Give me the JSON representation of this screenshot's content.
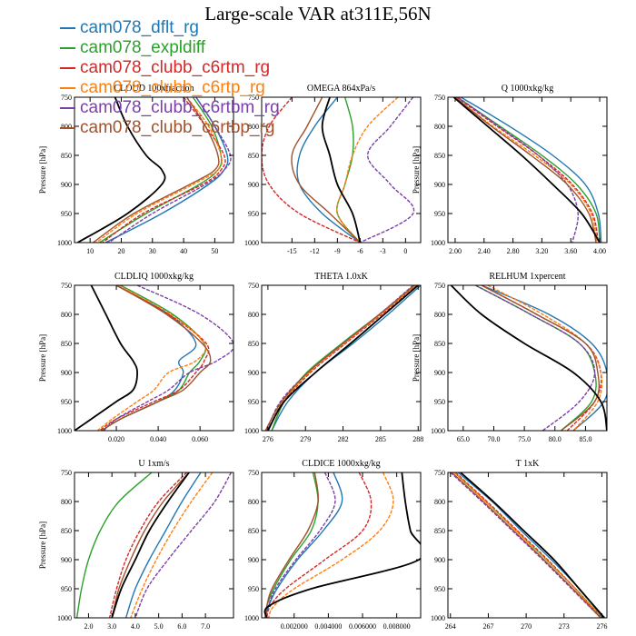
{
  "figure_title": "Large-scale VAR at311E,56N",
  "ylabel": "Pressure [hPa]",
  "colors": {
    "cam078_dflt_rg": "#1f77b4",
    "cam078_expldiff": "#2ca02c",
    "cam078_clubb_c6rtm_rg": "#d62728",
    "cam078_clubb_c6rtp_rg": "#ff7f0e",
    "cam078_clubb_c6rtbm_rg": "#7b3fa8",
    "cam078_clubb_c6rtbp_rg": "#a0522d",
    "reference": "#000000"
  },
  "legend": [
    {
      "label": "cam078_dflt_rg",
      "color": "#1f77b4"
    },
    {
      "label": "cam078_expldiff",
      "color": "#2ca02c"
    },
    {
      "label": "cam078_clubb_c6rtm_rg",
      "color": "#d62728"
    },
    {
      "label": "cam078_clubb_c6rtp_rg",
      "color": "#ff7f0e"
    },
    {
      "label": "cam078_clubb_c6rtbm_rg",
      "color": "#7b3fa8"
    },
    {
      "label": "cam078_clubb_c6rtbp_rg",
      "color": "#a0522d"
    }
  ],
  "chart_data": [
    {
      "type": "line",
      "title": "CLOUD 100xfraction",
      "ylabel": "Pressure [hPa]",
      "xlim": [
        5,
        56
      ],
      "ylim": [
        750,
        1000
      ],
      "xticks": [
        "10",
        "20",
        "30",
        "40",
        "50"
      ],
      "xtick_values": [
        10,
        20,
        30,
        40,
        50
      ],
      "yticks": [
        "750",
        "800",
        "850",
        "900",
        "950",
        "1000"
      ],
      "pressure": [
        750,
        800,
        850,
        875,
        900,
        950,
        1000
      ],
      "series": [
        {
          "color_key": "cam078_dflt_rg",
          "values": [
            44,
            50,
            54,
            53,
            48,
            33,
            15
          ]
        },
        {
          "color_key": "cam078_expldiff",
          "values": [
            43,
            49,
            52,
            51,
            45,
            28,
            13
          ]
        },
        {
          "color_key": "cam078_clubb_c6rtm_rg",
          "values": [
            40,
            47,
            53,
            52,
            46,
            27,
            14
          ]
        },
        {
          "color_key": "cam078_clubb_c6rtp_rg",
          "values": [
            41,
            48,
            52,
            51,
            43,
            25,
            12
          ]
        },
        {
          "color_key": "cam078_clubb_c6rtbm_rg",
          "values": [
            44,
            50,
            55,
            53,
            47,
            30,
            16
          ]
        },
        {
          "color_key": "cam078_clubb_c6rtbp_rg",
          "values": [
            41,
            47,
            51,
            50,
            42,
            24,
            11
          ]
        },
        {
          "color_key": "reference",
          "values": [
            18,
            22,
            28,
            33,
            33,
            22,
            6
          ]
        }
      ]
    },
    {
      "type": "line",
      "title": "OMEGA  864xPa/s",
      "ylabel": "",
      "xlim": [
        -19,
        2
      ],
      "ylim": [
        750,
        1000
      ],
      "xticks": [
        "-15",
        "-12",
        "-9",
        "-6",
        "-3",
        "0"
      ],
      "xtick_values": [
        -15,
        -12,
        -9,
        -6,
        -3,
        0
      ],
      "yticks": [],
      "pressure": [
        750,
        800,
        850,
        900,
        950,
        1000
      ],
      "series": [
        {
          "color_key": "cam078_dflt_rg",
          "values": [
            -9,
            -12,
            -14,
            -14,
            -11,
            -6
          ]
        },
        {
          "color_key": "cam078_expldiff",
          "values": [
            -8,
            -7,
            -7,
            -8,
            -9,
            -6
          ]
        },
        {
          "color_key": "cam078_clubb_c6rtm_rg",
          "values": [
            -15,
            -18,
            -19,
            -18,
            -14,
            -6
          ]
        },
        {
          "color_key": "cam078_clubb_c6rtp_rg",
          "values": [
            -1,
            -5,
            -7,
            -8,
            -9,
            -6
          ]
        },
        {
          "color_key": "cam078_clubb_c6rtbm_rg",
          "values": [
            1,
            -2,
            -5,
            -2,
            1,
            -6
          ]
        },
        {
          "color_key": "cam078_clubb_c6rtbp_rg",
          "values": [
            -11,
            -13,
            -15,
            -14,
            -10,
            -6
          ]
        },
        {
          "color_key": "reference",
          "values": [
            -10,
            -11,
            -10,
            -9,
            -7,
            -6
          ]
        }
      ]
    },
    {
      "type": "line",
      "title": "Q  1000xkg/kg",
      "ylabel": "Pressure [hPa]",
      "xlim": [
        1.9,
        4.1
      ],
      "ylim": [
        750,
        1000
      ],
      "xticks": [
        "2.00",
        "2.40",
        "2.80",
        "3.20",
        "3.60",
        "4.00"
      ],
      "xtick_values": [
        2.0,
        2.4,
        2.8,
        3.2,
        3.6,
        4.0
      ],
      "yticks": [
        "750",
        "800",
        "850",
        "900",
        "950",
        "1000"
      ],
      "pressure": [
        750,
        800,
        850,
        900,
        950,
        1000
      ],
      "series": [
        {
          "color_key": "cam078_dflt_rg",
          "values": [
            2.08,
            2.75,
            3.35,
            3.8,
            3.98,
            4.02
          ]
        },
        {
          "color_key": "cam078_expldiff",
          "values": [
            2.03,
            2.62,
            3.2,
            3.68,
            3.95,
            4.0
          ]
        },
        {
          "color_key": "cam078_clubb_c6rtm_rg",
          "values": [
            2.02,
            2.58,
            3.15,
            3.62,
            3.9,
            3.98
          ]
        },
        {
          "color_key": "cam078_clubb_c6rtp_rg",
          "values": [
            2.0,
            2.52,
            3.1,
            3.6,
            3.88,
            3.96
          ]
        },
        {
          "color_key": "cam078_clubb_c6rtbm_rg",
          "values": [
            2.04,
            2.6,
            3.15,
            3.55,
            3.7,
            3.62
          ]
        },
        {
          "color_key": "cam078_clubb_c6rtbp_rg",
          "values": [
            2.0,
            2.5,
            3.05,
            3.55,
            3.85,
            3.95
          ]
        },
        {
          "color_key": "reference",
          "values": [
            1.98,
            2.45,
            2.92,
            3.35,
            3.75,
            4.0
          ]
        }
      ]
    },
    {
      "type": "line",
      "title": "CLDLIQ  1000xkg/kg",
      "ylabel": "Pressure [hPa]",
      "xlim": [
        0,
        0.076
      ],
      "ylim": [
        750,
        1000
      ],
      "xticks": [
        "0.020",
        "0.040",
        "0.060"
      ],
      "xtick_values": [
        0.02,
        0.04,
        0.06
      ],
      "yticks": [
        "750",
        "800",
        "850",
        "900",
        "950",
        "1000"
      ],
      "pressure": [
        750,
        800,
        850,
        880,
        900,
        930,
        950,
        980,
        1000
      ],
      "series": [
        {
          "color_key": "cam078_dflt_rg",
          "values": [
            0.02,
            0.045,
            0.058,
            0.05,
            0.052,
            0.048,
            0.04,
            0.022,
            0.013
          ]
        },
        {
          "color_key": "cam078_expldiff",
          "values": [
            0.022,
            0.047,
            0.062,
            0.06,
            0.055,
            0.05,
            0.04,
            0.022,
            0.013
          ]
        },
        {
          "color_key": "cam078_clubb_c6rtm_rg",
          "values": [
            0.02,
            0.045,
            0.063,
            0.062,
            0.058,
            0.05,
            0.038,
            0.02,
            0.012
          ]
        },
        {
          "color_key": "cam078_clubb_c6rtp_rg",
          "values": [
            0.021,
            0.046,
            0.062,
            0.058,
            0.045,
            0.038,
            0.03,
            0.018,
            0.011
          ]
        },
        {
          "color_key": "cam078_clubb_c6rtbm_rg",
          "values": [
            0.03,
            0.06,
            0.076,
            0.068,
            0.055,
            0.045,
            0.035,
            0.02,
            0.014
          ]
        },
        {
          "color_key": "cam078_clubb_c6rtbp_rg",
          "values": [
            0.02,
            0.044,
            0.061,
            0.065,
            0.06,
            0.052,
            0.04,
            0.022,
            0.013
          ]
        },
        {
          "color_key": "reference",
          "values": [
            0.008,
            0.015,
            0.022,
            0.028,
            0.03,
            0.028,
            0.02,
            0.008,
            0.0
          ]
        }
      ]
    },
    {
      "type": "line",
      "title": "THETA  1.0xK",
      "ylabel": "",
      "xlim": [
        275.5,
        288.2
      ],
      "ylim": [
        750,
        1000
      ],
      "xticks": [
        "276",
        "279",
        "282",
        "285",
        "288"
      ],
      "xtick_values": [
        276,
        279,
        282,
        285,
        288
      ],
      "yticks": [],
      "pressure": [
        750,
        800,
        850,
        900,
        950,
        1000
      ],
      "series": [
        {
          "color_key": "cam078_dflt_rg",
          "values": [
            288.2,
            285.6,
            282.8,
            279.8,
            277.6,
            276.3
          ]
        },
        {
          "color_key": "cam078_expldiff",
          "values": [
            287.8,
            284.9,
            281.9,
            279.1,
            277.3,
            276.3
          ]
        },
        {
          "color_key": "cam078_clubb_c6rtm_rg",
          "values": [
            287.9,
            285.1,
            282.2,
            279.4,
            277.3,
            276.0
          ]
        },
        {
          "color_key": "cam078_clubb_c6rtp_rg",
          "values": [
            287.8,
            285.0,
            282.1,
            279.3,
            277.2,
            276.0
          ]
        },
        {
          "color_key": "cam078_clubb_c6rtbm_rg",
          "values": [
            287.6,
            284.9,
            282.0,
            279.2,
            277.0,
            275.9
          ]
        },
        {
          "color_key": "cam078_clubb_c6rtbp_rg",
          "values": [
            287.7,
            284.9,
            282.0,
            279.2,
            277.1,
            275.8
          ]
        },
        {
          "color_key": "reference",
          "values": [
            288.0,
            285.3,
            282.6,
            279.8,
            277.3,
            276.0
          ]
        }
      ]
    },
    {
      "type": "line",
      "title": "RELHUM  1xpercent",
      "ylabel": "Pressure [hPa]",
      "xlim": [
        62.5,
        88.5
      ],
      "ylim": [
        750,
        1000
      ],
      "xticks": [
        "65.0",
        "70.0",
        "75.0",
        "80.0",
        "85.0"
      ],
      "xtick_values": [
        65,
        70,
        75,
        80,
        85
      ],
      "yticks": [
        "750",
        "800",
        "850",
        "900",
        "950",
        "1000"
      ],
      "pressure": [
        750,
        800,
        850,
        900,
        950,
        1000
      ],
      "series": [
        {
          "color_key": "cam078_dflt_rg",
          "values": [
            68,
            79,
            86,
            88.5,
            88,
            83
          ]
        },
        {
          "color_key": "cam078_expldiff",
          "values": [
            67,
            76,
            84,
            86.5,
            86,
            81
          ]
        },
        {
          "color_key": "cam078_clubb_c6rtm_rg",
          "values": [
            68,
            77,
            85,
            87.5,
            86.5,
            82
          ]
        },
        {
          "color_key": "cam078_clubb_c6rtp_rg",
          "values": [
            69,
            78,
            85,
            87.5,
            87,
            83
          ]
        },
        {
          "color_key": "cam078_clubb_c6rtbm_rg",
          "values": [
            67,
            76,
            84,
            86.5,
            84,
            78
          ]
        },
        {
          "color_key": "cam078_clubb_c6rtbp_rg",
          "values": [
            68,
            77,
            85,
            87,
            86.5,
            81
          ]
        },
        {
          "color_key": "reference",
          "values": [
            63,
            68,
            75,
            83,
            87.5,
            88.5
          ]
        }
      ]
    },
    {
      "type": "line",
      "title": "U  1xm/s",
      "ylabel": "Pressure [hPa]",
      "xlim": [
        1.4,
        8.2
      ],
      "ylim": [
        750,
        1000
      ],
      "xticks": [
        "2.0",
        "3.0",
        "4.0",
        "5.0",
        "6.0",
        "7.0"
      ],
      "xtick_values": [
        2,
        3,
        4,
        5,
        6,
        7
      ],
      "yticks": [
        "750",
        "800",
        "850",
        "900",
        "950",
        "1000"
      ],
      "pressure": [
        750,
        800,
        850,
        900,
        950,
        1000
      ],
      "series": [
        {
          "color_key": "cam078_dflt_rg",
          "values": [
            6.8,
            6.0,
            5.3,
            4.6,
            4.0,
            3.6
          ]
        },
        {
          "color_key": "cam078_expldiff",
          "values": [
            4.7,
            3.3,
            2.5,
            2.0,
            1.7,
            1.5
          ]
        },
        {
          "color_key": "cam078_clubb_c6rtm_rg",
          "values": [
            6.2,
            5.0,
            4.2,
            3.6,
            3.2,
            2.9
          ]
        },
        {
          "color_key": "cam078_clubb_c6rtp_rg",
          "values": [
            7.3,
            6.4,
            5.6,
            4.9,
            4.3,
            3.8
          ]
        },
        {
          "color_key": "cam078_clubb_c6rtbm_rg",
          "values": [
            8.1,
            7.4,
            6.4,
            5.4,
            4.5,
            4.0
          ]
        },
        {
          "color_key": "cam078_clubb_c6rtbp_rg",
          "values": [
            6.3,
            5.2,
            4.4,
            3.8,
            3.3,
            3.0
          ]
        },
        {
          "color_key": "reference",
          "values": [
            6.3,
            5.4,
            4.6,
            4.0,
            3.4,
            3.0
          ]
        }
      ]
    },
    {
      "type": "line",
      "title": "CLDICE  1000xkg/kg",
      "ylabel": "",
      "xlim": [
        0.0001,
        0.0094
      ],
      "ylim": [
        750,
        1000
      ],
      "xticks": [
        "0.002000",
        "0.004000",
        "0.006000",
        "0.008000"
      ],
      "xtick_values": [
        0.002,
        0.004,
        0.006,
        0.008
      ],
      "yticks": [],
      "pressure": [
        750,
        800,
        850,
        900,
        950,
        980,
        1000
      ],
      "series": [
        {
          "color_key": "cam078_dflt_rg",
          "values": [
            0.0043,
            0.0048,
            0.0037,
            0.0022,
            0.001,
            0.0005,
            0.0003
          ]
        },
        {
          "color_key": "cam078_expldiff",
          "values": [
            0.0031,
            0.0034,
            0.003,
            0.0018,
            0.0008,
            0.0004,
            0.0003
          ]
        },
        {
          "color_key": "cam078_clubb_c6rtm_rg",
          "values": [
            0.0058,
            0.0065,
            0.006,
            0.0038,
            0.0015,
            0.0006,
            0.0004
          ]
        },
        {
          "color_key": "cam078_clubb_c6rtp_rg",
          "values": [
            0.0072,
            0.0078,
            0.007,
            0.0048,
            0.002,
            0.0008,
            0.0005
          ]
        },
        {
          "color_key": "cam078_clubb_c6rtbm_rg",
          "values": [
            0.0038,
            0.0044,
            0.0035,
            0.0021,
            0.0009,
            0.0005,
            0.0003
          ]
        },
        {
          "color_key": "cam078_clubb_c6rtbp_rg",
          "values": [
            0.0032,
            0.0034,
            0.0028,
            0.0017,
            0.0007,
            0.0004,
            0.0003
          ]
        },
        {
          "color_key": "reference",
          "values": [
            0.0083,
            0.0085,
            0.0088,
            0.0093,
            0.003,
            0.0005,
            0.0004
          ]
        }
      ]
    },
    {
      "type": "line",
      "title": "T  1xK",
      "ylabel": "",
      "xlim": [
        263.8,
        276.4
      ],
      "ylim": [
        750,
        1000
      ],
      "xticks": [
        "264",
        "267",
        "270",
        "273",
        "276"
      ],
      "xtick_values": [
        264,
        267,
        270,
        273,
        276
      ],
      "yticks": [],
      "pressure": [
        750,
        800,
        850,
        900,
        950,
        1000
      ],
      "series": [
        {
          "color_key": "cam078_dflt_rg",
          "values": [
            264.6,
            267.3,
            269.6,
            272.0,
            274.2,
            276.1
          ]
        },
        {
          "color_key": "cam078_expldiff",
          "values": [
            264.3,
            266.8,
            269.2,
            271.6,
            273.9,
            276.0
          ]
        },
        {
          "color_key": "cam078_clubb_c6rtm_rg",
          "values": [
            264.4,
            266.9,
            269.3,
            271.7,
            273.9,
            276.0
          ]
        },
        {
          "color_key": "cam078_clubb_c6rtp_rg",
          "values": [
            264.3,
            266.8,
            269.2,
            271.6,
            273.9,
            276.0
          ]
        },
        {
          "color_key": "cam078_clubb_c6rtbm_rg",
          "values": [
            264.0,
            266.5,
            268.9,
            271.3,
            273.6,
            275.9
          ]
        },
        {
          "color_key": "cam078_clubb_c6rtbp_rg",
          "values": [
            264.1,
            266.6,
            269.0,
            271.4,
            273.7,
            275.9
          ]
        },
        {
          "color_key": "reference",
          "values": [
            264.8,
            267.4,
            269.8,
            272.2,
            274.2,
            276.2
          ]
        }
      ]
    }
  ]
}
